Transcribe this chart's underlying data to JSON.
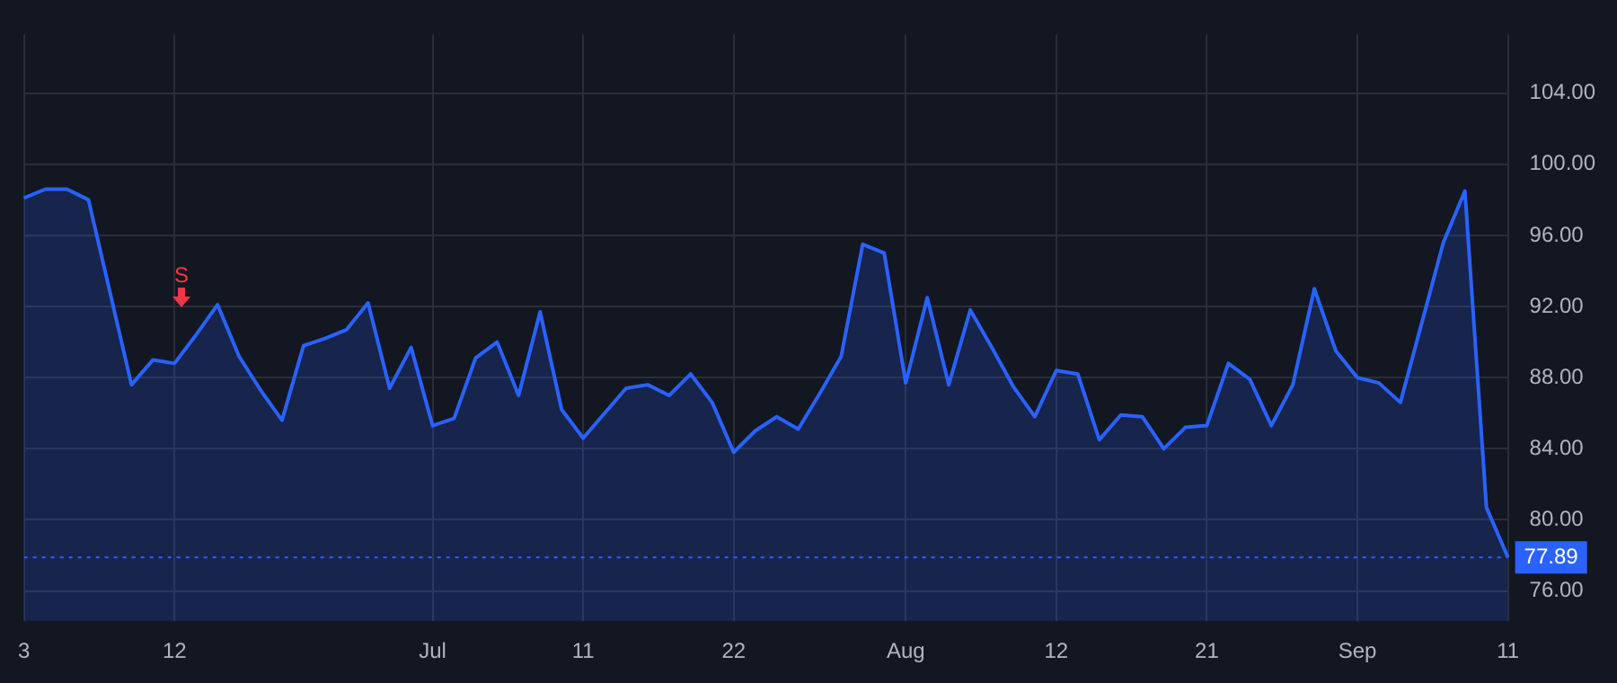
{
  "chart_data": {
    "type": "area",
    "categories": [
      "3",
      null,
      null,
      null,
      null,
      null,
      null,
      "12",
      null,
      null,
      null,
      null,
      null,
      null,
      null,
      null,
      null,
      null,
      null,
      "Jul",
      null,
      null,
      null,
      null,
      null,
      null,
      "11",
      null,
      null,
      null,
      null,
      null,
      null,
      "22",
      null,
      null,
      null,
      null,
      null,
      null,
      null,
      "Aug",
      null,
      null,
      null,
      null,
      null,
      null,
      "12",
      null,
      null,
      null,
      null,
      null,
      null,
      "21",
      null,
      null,
      null,
      null,
      null,
      null,
      "Sep",
      null,
      null,
      null,
      null,
      null,
      null,
      "11"
    ],
    "series": [
      {
        "color": "#2962ff",
        "values": [
          98.1,
          98.6,
          98.6,
          98.0,
          92.8,
          87.6,
          89.0,
          88.8,
          90.4,
          92.1,
          89.2,
          87.3,
          85.6,
          89.8,
          90.2,
          90.7,
          92.2,
          87.4,
          89.7,
          85.3,
          85.7,
          89.1,
          90.0,
          87.0,
          91.7,
          86.2,
          84.6,
          86.0,
          87.4,
          87.6,
          87.0,
          88.2,
          86.6,
          83.8,
          85.0,
          85.8,
          85.1,
          87.1,
          89.2,
          95.5,
          95.0,
          87.7,
          92.5,
          87.6,
          91.8,
          89.7,
          87.5,
          85.8,
          88.4,
          88.2,
          84.5,
          85.9,
          85.8,
          84.0,
          85.2,
          85.3,
          88.8,
          87.9,
          85.3,
          87.6,
          93.0,
          89.5,
          88.0,
          87.7,
          86.6,
          91.1,
          95.6,
          98.5,
          80.7,
          77.89
        ]
      }
    ],
    "ylim": [
      74.3,
      107.3
    ],
    "yticks": [
      {
        "value": 76,
        "label": "76.00"
      },
      {
        "value": 80,
        "label": "80.00"
      },
      {
        "value": 84,
        "label": "84.00"
      },
      {
        "value": 88,
        "label": "88.00"
      },
      {
        "value": 92,
        "label": "92.00"
      },
      {
        "value": 96,
        "label": "96.00"
      },
      {
        "value": 100,
        "label": "100.00"
      },
      {
        "value": 104,
        "label": "104.00"
      }
    ],
    "grid": true,
    "ref_lines": [
      {
        "axis": "y",
        "value": 77.89,
        "label": "77.89",
        "color": "#2962ff",
        "line_style": "dotted"
      }
    ],
    "annotations": [
      "S"
    ]
  }
}
